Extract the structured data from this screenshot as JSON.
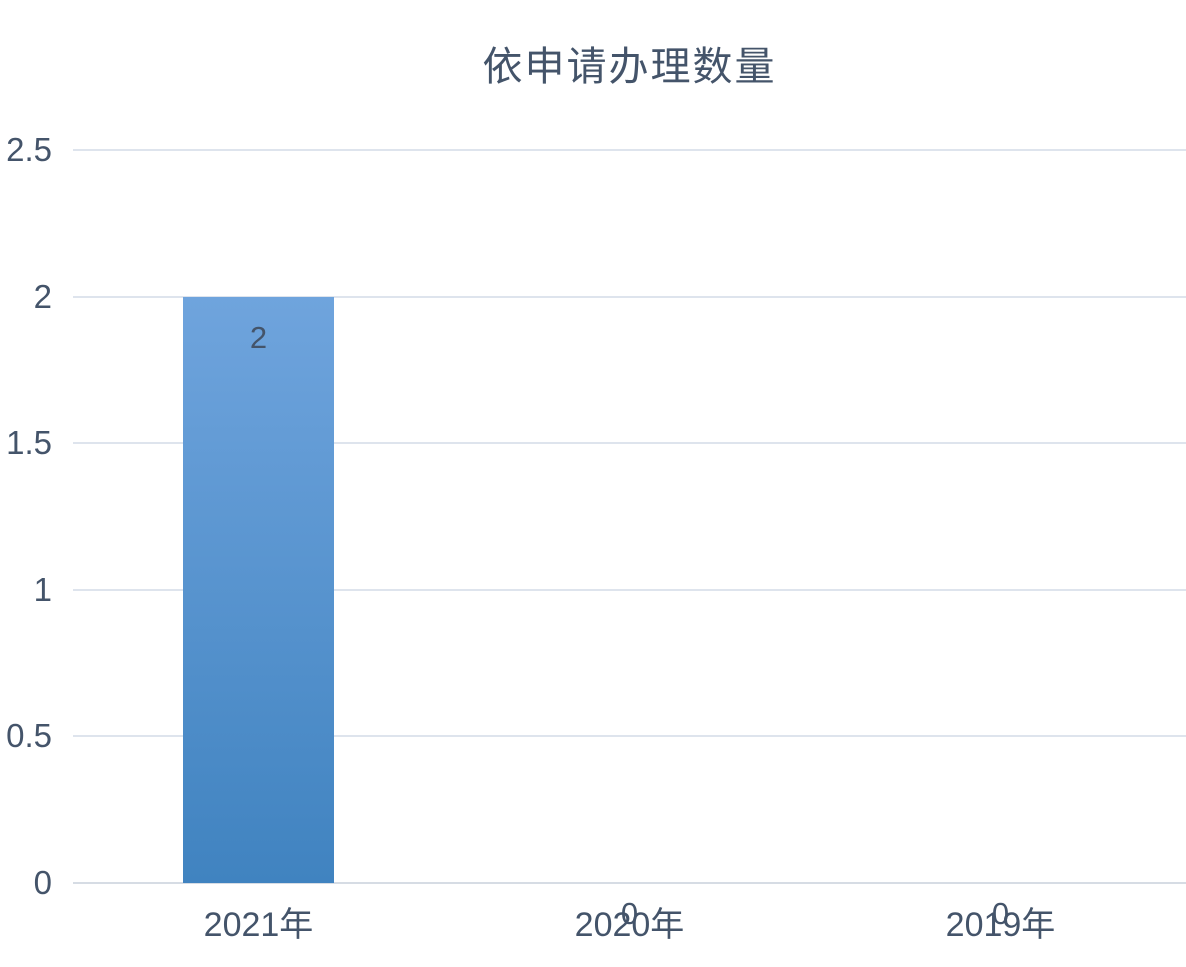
{
  "title": "依申请办理数量",
  "colors": {
    "title_text": "#44546A",
    "axis_text": "#44546A",
    "data_label_text": "#44546A",
    "gridline": "#DEE4ED",
    "axis_line": "#D6DCE4",
    "bar_gradient_top": "#6FA4DD",
    "bar_gradient_bottom": "#4083C0"
  },
  "chart_data": {
    "type": "bar",
    "title": "依申请办理数量",
    "categories": [
      "2021年",
      "2020年",
      "2019年"
    ],
    "values": [
      2,
      0,
      0
    ],
    "data_labels": [
      "2",
      "0",
      "0"
    ],
    "y_ticks": [
      "2.5",
      "2",
      "1.5",
      "1",
      "0.5",
      "0"
    ],
    "ylim": [
      0,
      2.5
    ],
    "y_tick_step": 0.5,
    "xlabel": "",
    "ylabel": "",
    "grid": true,
    "legend_position": "none",
    "data_label_position_nonzero": "inside-end",
    "data_label_position_zero": "outside-end-below-axis"
  }
}
